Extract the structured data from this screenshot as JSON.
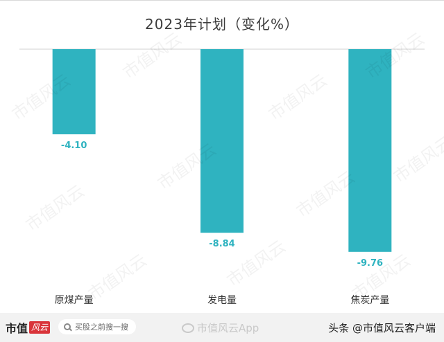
{
  "chart_data": {
    "type": "bar",
    "title": "2023年计划（变化%）",
    "categories": [
      "原煤产量",
      "发电量",
      "焦炭产量"
    ],
    "values": [
      -4.1,
      -8.84,
      -9.76
    ],
    "value_labels": [
      "-4.10",
      "-8.84",
      "-9.76"
    ],
    "ylim": [
      -10.5,
      0
    ],
    "grid": false,
    "bar_color": "#2fb3c0",
    "label_color": "#2fb3c0"
  },
  "watermark": {
    "text": "市值风云"
  },
  "footer": {
    "brand_text": "市值",
    "brand_mark": "风云",
    "search_placeholder": "买股之前搜一搜",
    "weibo_text": "市值风云App",
    "credit": "头条 @市值风云客户端"
  }
}
